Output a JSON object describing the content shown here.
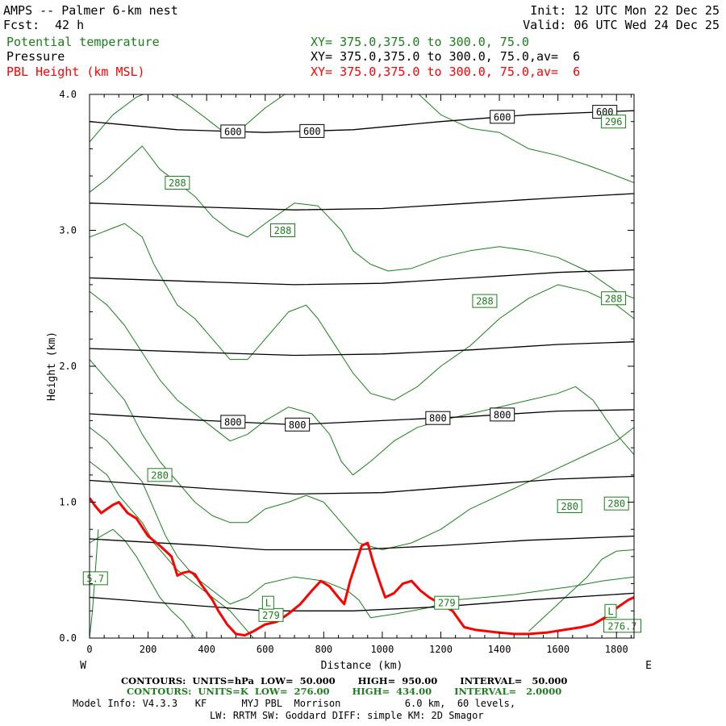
{
  "header": {
    "title": "AMPS -- Palmer 6-km nest",
    "fcst_label": "Fcst:",
    "fcst_value": "42 h",
    "init": "Init: 12 UTC Mon 22 Dec 25",
    "valid": "Valid: 06 UTC Wed 24 Dec 25",
    "rows": [
      {
        "name": "Potential temperature",
        "xy": "XY= 375.0,375.0 to 300.0, 75.0"
      },
      {
        "name": "Pressure",
        "xy": "XY= 375.0,375.0 to 300.0, 75.0,av=  6"
      },
      {
        "name": "PBL Height (km MSL)",
        "xy": "XY= 375.0,375.0 to 300.0, 75.0,av=  6"
      }
    ]
  },
  "colors": {
    "theta": "#1a7f1a",
    "pressure": "#000000",
    "pbl": "#ff0000"
  },
  "chart_data": {
    "type": "line",
    "xlabel": "Distance (km)",
    "ylabel": "Height (km)",
    "xlim": [
      0,
      1860
    ],
    "ylim": [
      0,
      4.0
    ],
    "x_ticks": [
      0,
      200,
      400,
      600,
      800,
      1000,
      1200,
      1400,
      1600,
      1800
    ],
    "y_ticks": [
      0.0,
      1.0,
      2.0,
      3.0,
      4.0
    ],
    "y_tick_labels": [
      "0.0",
      "1.0",
      "2.0",
      "3.0",
      "4.0"
    ],
    "direction_labels": {
      "left": "W",
      "right": "E"
    },
    "series": [
      {
        "name": "PBL Height (km MSL)",
        "kind": "pbl",
        "x": [
          0,
          20,
          40,
          60,
          80,
          100,
          130,
          160,
          200,
          240,
          280,
          300,
          320,
          340,
          360,
          380,
          400,
          420,
          440,
          470,
          500,
          530,
          560,
          600,
          640,
          680,
          720,
          760,
          790,
          820,
          850,
          870,
          890,
          910,
          930,
          950,
          970,
          990,
          1010,
          1040,
          1070,
          1100,
          1130,
          1160,
          1200,
          1240,
          1280,
          1320,
          1360,
          1400,
          1450,
          1500,
          1560,
          1620,
          1680,
          1720,
          1760,
          1800,
          1840,
          1860
        ],
        "y": [
          1.03,
          0.97,
          0.92,
          0.95,
          0.98,
          1.0,
          0.92,
          0.88,
          0.75,
          0.68,
          0.6,
          0.46,
          0.48,
          0.49,
          0.47,
          0.4,
          0.34,
          0.28,
          0.2,
          0.1,
          0.03,
          0.02,
          0.05,
          0.1,
          0.12,
          0.18,
          0.25,
          0.35,
          0.42,
          0.38,
          0.3,
          0.25,
          0.42,
          0.55,
          0.68,
          0.7,
          0.55,
          0.42,
          0.3,
          0.33,
          0.4,
          0.42,
          0.35,
          0.3,
          0.25,
          0.2,
          0.08,
          0.06,
          0.05,
          0.04,
          0.03,
          0.03,
          0.04,
          0.06,
          0.08,
          0.1,
          0.15,
          0.22,
          0.28,
          0.3
        ]
      },
      {
        "name": "600 hPa",
        "kind": "pressure",
        "label": "600",
        "x": [
          0,
          300,
          600,
          900,
          1200,
          1500,
          1860
        ],
        "y": [
          3.8,
          3.74,
          3.72,
          3.74,
          3.8,
          3.85,
          3.88
        ],
        "label_x": [
          490,
          760,
          1410,
          1760
        ]
      },
      {
        "name": "700 hPa",
        "kind": "pressure",
        "x": [
          0,
          400,
          700,
          1000,
          1300,
          1600,
          1860
        ],
        "y": [
          3.2,
          3.17,
          3.15,
          3.16,
          3.2,
          3.24,
          3.27
        ]
      },
      {
        "name": "750 hPa",
        "kind": "pressure",
        "x": [
          0,
          400,
          700,
          1000,
          1300,
          1600,
          1860
        ],
        "y": [
          2.65,
          2.62,
          2.6,
          2.61,
          2.65,
          2.69,
          2.71
        ]
      },
      {
        "name": "775 hPa",
        "kind": "pressure",
        "x": [
          0,
          400,
          700,
          1000,
          1300,
          1600,
          1860
        ],
        "y": [
          2.13,
          2.1,
          2.08,
          2.09,
          2.12,
          2.16,
          2.18
        ]
      },
      {
        "name": "800 hPa",
        "kind": "pressure",
        "label": "800",
        "x": [
          0,
          400,
          700,
          1000,
          1300,
          1600,
          1860
        ],
        "y": [
          1.65,
          1.6,
          1.57,
          1.6,
          1.63,
          1.67,
          1.68
        ],
        "label_x": [
          490,
          710,
          1190,
          1410
        ]
      },
      {
        "name": "850 hPa",
        "kind": "pressure",
        "x": [
          0,
          400,
          700,
          1000,
          1300,
          1600,
          1860
        ],
        "y": [
          1.16,
          1.1,
          1.06,
          1.07,
          1.12,
          1.17,
          1.19
        ]
      },
      {
        "name": "900 hPa",
        "kind": "pressure",
        "x": [
          0,
          400,
          600,
          900,
          1200,
          1500,
          1860
        ],
        "y": [
          0.73,
          0.68,
          0.65,
          0.65,
          0.68,
          0.72,
          0.75
        ]
      },
      {
        "name": "950 hPa",
        "kind": "pressure",
        "x": [
          0,
          300,
          600,
          900,
          1200,
          1500,
          1860
        ],
        "y": [
          0.3,
          0.25,
          0.2,
          0.2,
          0.23,
          0.28,
          0.33
        ]
      },
      {
        "name": "theta 1",
        "kind": "theta",
        "x": [
          0,
          80,
          160,
          240,
          320,
          400,
          460,
          520,
          600,
          700,
          800,
          900,
          1000,
          1100,
          1200,
          1300,
          1400,
          1500,
          1600,
          1700,
          1800,
          1860
        ],
        "y": [
          3.65,
          3.85,
          3.98,
          4.05,
          3.95,
          3.82,
          3.72,
          3.75,
          3.9,
          4.05,
          4.08,
          4.05,
          4.1,
          4.05,
          3.85,
          3.75,
          3.72,
          3.6,
          3.55,
          3.48,
          3.4,
          3.35
        ]
      },
      {
        "name": "theta 2",
        "kind": "theta",
        "x": [
          0,
          60,
          120,
          180,
          240,
          300,
          360,
          420,
          480,
          540,
          600,
          700,
          780,
          860,
          900,
          960,
          1020,
          1100,
          1200,
          1300,
          1400,
          1500,
          1600,
          1700,
          1800,
          1860
        ],
        "y": [
          3.28,
          3.38,
          3.5,
          3.62,
          3.45,
          3.35,
          3.25,
          3.1,
          3.0,
          2.95,
          3.05,
          3.2,
          3.18,
          3.0,
          2.85,
          2.75,
          2.7,
          2.72,
          2.8,
          2.85,
          2.88,
          2.85,
          2.8,
          2.7,
          2.55,
          2.5
        ]
      },
      {
        "name": "theta 3",
        "kind": "theta",
        "x": [
          0,
          60,
          120,
          180,
          220,
          260,
          300,
          360,
          420,
          480,
          540,
          600,
          680,
          740,
          780,
          840,
          900,
          960,
          1040,
          1120,
          1200,
          1300,
          1400,
          1500,
          1600,
          1700,
          1800,
          1860
        ],
        "y": [
          2.95,
          3.0,
          3.05,
          2.95,
          2.75,
          2.6,
          2.45,
          2.35,
          2.2,
          2.05,
          2.05,
          2.2,
          2.4,
          2.45,
          2.35,
          2.15,
          1.95,
          1.8,
          1.75,
          1.85,
          2.0,
          2.15,
          2.35,
          2.5,
          2.6,
          2.55,
          2.45,
          2.35
        ]
      },
      {
        "name": "theta 4",
        "kind": "theta",
        "x": [
          0,
          60,
          120,
          180,
          240,
          300,
          360,
          420,
          480,
          540,
          600,
          680,
          760,
          820,
          860,
          900,
          960,
          1040,
          1120,
          1200,
          1300,
          1400,
          1500,
          1600,
          1660,
          1720,
          1800,
          1860
        ],
        "y": [
          2.55,
          2.45,
          2.3,
          2.1,
          1.9,
          1.75,
          1.65,
          1.55,
          1.45,
          1.5,
          1.6,
          1.7,
          1.65,
          1.5,
          1.3,
          1.2,
          1.3,
          1.45,
          1.55,
          1.6,
          1.65,
          1.7,
          1.75,
          1.8,
          1.85,
          1.75,
          1.5,
          1.35
        ]
      },
      {
        "name": "theta 5",
        "kind": "theta",
        "x": [
          0,
          60,
          120,
          180,
          240,
          300,
          360,
          420,
          480,
          540,
          600,
          680,
          740,
          800,
          860,
          920,
          1000,
          1100,
          1200,
          1300,
          1400,
          1500,
          1600,
          1700,
          1800,
          1860
        ],
        "y": [
          2.05,
          1.9,
          1.75,
          1.5,
          1.3,
          1.15,
          1.0,
          0.9,
          0.85,
          0.85,
          0.95,
          1.0,
          1.05,
          1.0,
          0.85,
          0.7,
          0.65,
          0.7,
          0.8,
          0.95,
          1.05,
          1.15,
          1.25,
          1.35,
          1.45,
          1.55
        ]
      },
      {
        "name": "theta 6",
        "kind": "theta",
        "x": [
          0,
          60,
          100,
          140,
          180,
          220,
          260,
          300,
          360,
          420,
          480,
          540,
          600,
          700,
          800,
          880,
          920,
          960,
          1050,
          1150,
          1250,
          1350,
          1450,
          1550,
          1650,
          1750,
          1860
        ],
        "y": [
          1.55,
          1.45,
          1.35,
          1.25,
          1.15,
          0.95,
          0.75,
          0.6,
          0.45,
          0.35,
          0.25,
          0.3,
          0.4,
          0.45,
          0.42,
          0.35,
          0.28,
          0.15,
          0.18,
          0.22,
          0.28,
          0.3,
          0.32,
          0.35,
          0.38,
          0.42,
          0.45
        ]
      },
      {
        "name": "theta 7",
        "kind": "theta",
        "x": [
          0,
          60,
          100,
          140,
          180,
          220,
          260,
          300,
          360,
          420,
          480,
          520,
          560
        ],
        "y": [
          1.3,
          1.2,
          1.05,
          0.95,
          0.85,
          0.7,
          0.6,
          0.5,
          0.4,
          0.3,
          0.2,
          0.1,
          0.0
        ]
      },
      {
        "name": "theta 8",
        "kind": "theta",
        "x": [
          0,
          40,
          80,
          120,
          160,
          200,
          240,
          280,
          320,
          360
        ],
        "y": [
          0.7,
          0.75,
          0.8,
          0.72,
          0.6,
          0.45,
          0.3,
          0.2,
          0.12,
          0.0
        ]
      },
      {
        "name": "theta 9",
        "kind": "theta",
        "x": [
          0,
          10,
          20,
          30
        ],
        "y": [
          0.0,
          0.2,
          0.5,
          0.8
        ]
      },
      {
        "name": "theta 10",
        "kind": "theta",
        "x": [
          1500,
          1600,
          1700,
          1750,
          1800,
          1860
        ],
        "y": [
          0.05,
          0.25,
          0.45,
          0.58,
          0.64,
          0.65
        ]
      }
    ],
    "annotations": [
      {
        "kind": "theta",
        "text": "288",
        "x": 300,
        "y": 3.35
      },
      {
        "kind": "theta",
        "text": "288",
        "x": 660,
        "y": 3.0
      },
      {
        "kind": "theta",
        "text": "288",
        "x": 1350,
        "y": 2.48
      },
      {
        "kind": "theta",
        "text": "288",
        "x": 1790,
        "y": 2.5
      },
      {
        "kind": "theta",
        "text": "296",
        "x": 1790,
        "y": 3.8
      },
      {
        "kind": "theta",
        "text": "280",
        "x": 240,
        "y": 1.2
      },
      {
        "kind": "theta",
        "text": "280",
        "x": 1640,
        "y": 0.97
      },
      {
        "kind": "theta",
        "text": "280",
        "x": 1800,
        "y": 0.99
      },
      {
        "kind": "theta",
        "text": "279",
        "x": 620,
        "y": 0.17
      },
      {
        "kind": "theta",
        "text": "279",
        "x": 1220,
        "y": 0.26
      },
      {
        "kind": "theta",
        "text": "276.7",
        "x": 1820,
        "y": 0.09
      },
      {
        "kind": "theta",
        "text": "5.7",
        "x": 20,
        "y": 0.44
      },
      {
        "kind": "theta",
        "text": "L",
        "x": 610,
        "y": 0.26
      },
      {
        "kind": "theta",
        "text": "L",
        "x": 1780,
        "y": 0.2
      }
    ]
  },
  "footer": {
    "line1": "CONTOURS:  UNITS=hPa  LOW=  50.000       HIGH=  950.00       INTERVAL=   50.000",
    "line2": "CONTOURS:  UNITS=K  LOW=  276.00       HIGH=  434.00       INTERVAL=   2.0000",
    "line3": "Model Info: V4.3.3   KF      MYJ PBL  Morrison           6.0 km,  60 levels,",
    "line4": "LW: RRTM SW: Goddard DIFF: simple KM: 2D Smagor"
  }
}
